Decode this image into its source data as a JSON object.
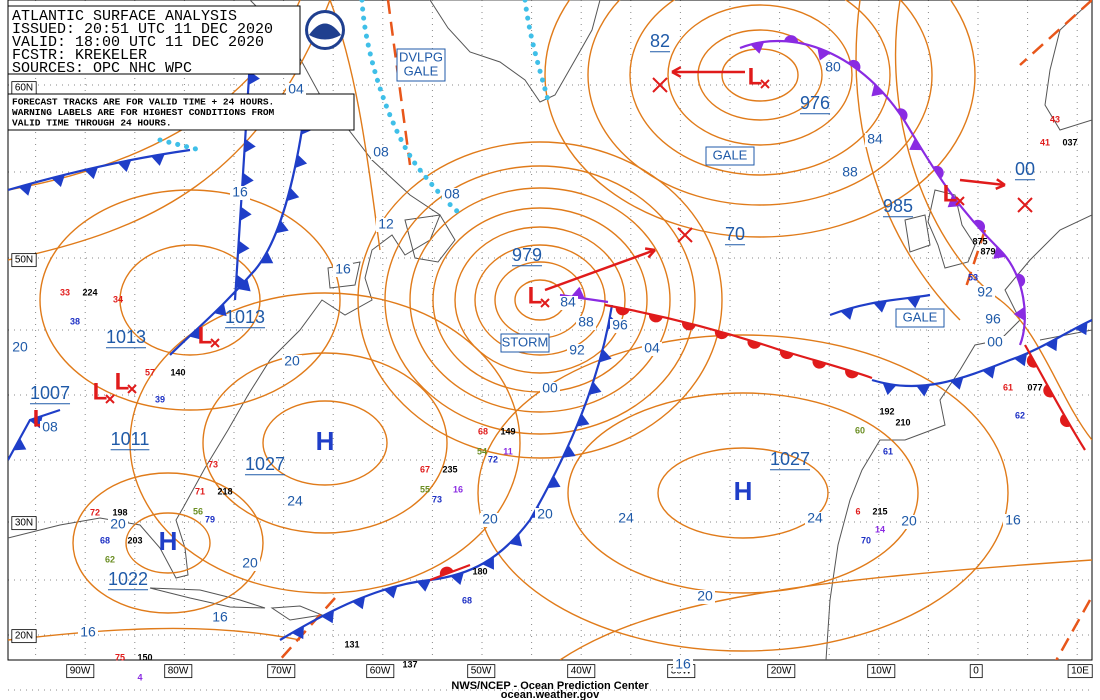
{
  "header": {
    "lines": [
      "ATLANTIC SURFACE ANALYSIS",
      "ISSUED: 20:51 UTC 11 DEC 2020",
      "VALID:  18:00 UTC 11 DEC 2020",
      "FCSTR:  KREKELER",
      "SOURCES: OPC NHC WPC"
    ]
  },
  "notice": {
    "lines": [
      "FORECAST TRACKS ARE FOR VALID TIME + 24 HOURS.",
      "WARNING LABELS ARE FOR HIGHEST CONDITIONS FROM",
      "VALID TIME THROUGH 24 HOURS."
    ]
  },
  "footer": {
    "lines": [
      "NWS/NCEP - Ocean Prediction Center",
      "ocean.weather.gov"
    ]
  },
  "longitude_labels": [
    "90W",
    "80W",
    "70W",
    "60W",
    "50W",
    "40W",
    "30W",
    "20W",
    "10W",
    "0",
    "10E"
  ],
  "latitude_labels": [
    "60N",
    "50N",
    "30N",
    "20N"
  ],
  "centers": [
    "L",
    "L",
    "L",
    "L",
    "L",
    "L",
    "L",
    "H",
    "H",
    "H"
  ],
  "pressure_labels": [
    "979",
    "976",
    "985",
    "1013",
    "1013",
    "1007",
    "1011",
    "1027",
    "1027",
    "1022",
    "82",
    "70",
    "00"
  ],
  "isobar_labels": [
    "04",
    "08",
    "08",
    "12",
    "16",
    "16",
    "20",
    "20",
    "08",
    "24",
    "20",
    "20",
    "16",
    "16",
    "20",
    "20",
    "24",
    "20",
    "16",
    "24",
    "20",
    "16",
    "84",
    "88",
    "92",
    "96",
    "00",
    "04",
    "80",
    "84",
    "88",
    "92",
    "96",
    "00"
  ],
  "warnings": [
    {
      "lines": [
        "DVLPG",
        "GALE"
      ]
    },
    {
      "lines": [
        "GALE"
      ]
    },
    {
      "lines": [
        "GALE"
      ]
    },
    {
      "lines": [
        "STORM"
      ]
    }
  ],
  "stations": [
    {
      "text": "33",
      "color": "#e01b1b"
    },
    {
      "text": "224",
      "color": "#000000"
    },
    {
      "text": "38",
      "color": "#1c2fc4"
    },
    {
      "text": "34",
      "color": "#e01b1b"
    },
    {
      "text": "39",
      "color": "#1c2fc4"
    },
    {
      "text": "140",
      "color": "#000000"
    },
    {
      "text": "57",
      "color": "#e01b1b"
    },
    {
      "text": "73",
      "color": "#e01b1b"
    },
    {
      "text": "71",
      "color": "#e01b1b"
    },
    {
      "text": "218",
      "color": "#000000"
    },
    {
      "text": "56",
      "color": "#6b8e23"
    },
    {
      "text": "79",
      "color": "#1c2fc4"
    },
    {
      "text": "72",
      "color": "#e01b1b"
    },
    {
      "text": "198",
      "color": "#000000"
    },
    {
      "text": "203",
      "color": "#000000"
    },
    {
      "text": "62",
      "color": "#6b8e23"
    },
    {
      "text": "68",
      "color": "#1c2fc4"
    },
    {
      "text": "180",
      "color": "#000000"
    },
    {
      "text": "68",
      "color": "#1c2fc4"
    },
    {
      "text": "149",
      "color": "#000000"
    },
    {
      "text": "68",
      "color": "#e01b1b"
    },
    {
      "text": "72",
      "color": "#1c2fc4"
    },
    {
      "text": "54",
      "color": "#6b8e23"
    },
    {
      "text": "11",
      "color": "#8a2be2"
    },
    {
      "text": "67",
      "color": "#e01b1b"
    },
    {
      "text": "235",
      "color": "#000000"
    },
    {
      "text": "55",
      "color": "#6b8e23"
    },
    {
      "text": "16",
      "color": "#8a2be2"
    },
    {
      "text": "73",
      "color": "#1c2fc4"
    },
    {
      "text": "192",
      "color": "#000000"
    },
    {
      "text": "210",
      "color": "#000000"
    },
    {
      "text": "61",
      "color": "#1c2fc4"
    },
    {
      "text": "60",
      "color": "#6b8e23"
    },
    {
      "text": "215",
      "color": "#000000"
    },
    {
      "text": "70",
      "color": "#1c2fc4"
    },
    {
      "text": "14",
      "color": "#8a2be2"
    },
    {
      "text": "6",
      "color": "#e01b1b"
    },
    {
      "text": "077",
      "color": "#000000"
    },
    {
      "text": "62",
      "color": "#1c2fc4"
    },
    {
      "text": "61",
      "color": "#e01b1b"
    },
    {
      "text": "875",
      "color": "#000000"
    },
    {
      "text": "879",
      "color": "#000000"
    },
    {
      "text": "53",
      "color": "#1c2fc4"
    },
    {
      "text": "43",
      "color": "#e01b1b"
    },
    {
      "text": "41",
      "color": "#e01b1b"
    },
    {
      "text": "037",
      "color": "#000000"
    },
    {
      "text": "131",
      "color": "#000000"
    },
    {
      "text": "150",
      "color": "#000000"
    },
    {
      "text": "75",
      "color": "#e01b1b"
    },
    {
      "text": "4",
      "color": "#8a2be2"
    },
    {
      "text": "137",
      "color": "#000000"
    }
  ]
}
